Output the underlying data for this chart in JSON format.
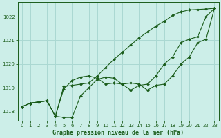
{
  "title": "Graphe pression niveau de la mer (hPa)",
  "bg_color": "#cceee8",
  "grid_color": "#aad8d2",
  "line_color": "#1a5c1a",
  "xlim": [
    -0.5,
    23.5
  ],
  "ylim": [
    1017.6,
    1022.6
  ],
  "yticks": [
    1018,
    1019,
    1020,
    1021,
    1022
  ],
  "xticks": [
    0,
    1,
    2,
    3,
    4,
    5,
    6,
    7,
    8,
    9,
    10,
    11,
    12,
    13,
    14,
    15,
    16,
    17,
    18,
    19,
    20,
    21,
    22,
    23
  ],
  "series_wavy": [
    1018.2,
    1018.35,
    1018.4,
    1018.45,
    1017.8,
    1018.95,
    1019.3,
    1019.45,
    1019.5,
    1019.4,
    1019.15,
    1019.2,
    1019.15,
    1018.9,
    1019.1,
    1019.15,
    1019.5,
    1020.0,
    1020.3,
    1020.9,
    1021.05,
    1021.15,
    1022.0,
    1022.35
  ],
  "series_linear": [
    1018.2,
    1018.35,
    1018.4,
    1018.45,
    1017.8,
    1019.05,
    1019.1,
    1019.15,
    1019.2,
    1019.5,
    1019.85,
    1020.2,
    1020.5,
    1020.8,
    1021.1,
    1021.35,
    1021.6,
    1021.8,
    1022.05,
    1022.2,
    1022.28,
    1022.3,
    1022.32,
    1022.35
  ],
  "series_v": [
    1018.2,
    1018.35,
    1018.4,
    1018.45,
    1017.8,
    1017.75,
    1017.75,
    1018.65,
    1019.0,
    1019.35,
    1019.45,
    1019.4,
    1019.15,
    1019.2,
    1019.15,
    1018.9,
    1019.1,
    1019.15,
    1019.5,
    1020.0,
    1020.3,
    1020.9,
    1021.05,
    1022.35
  ]
}
